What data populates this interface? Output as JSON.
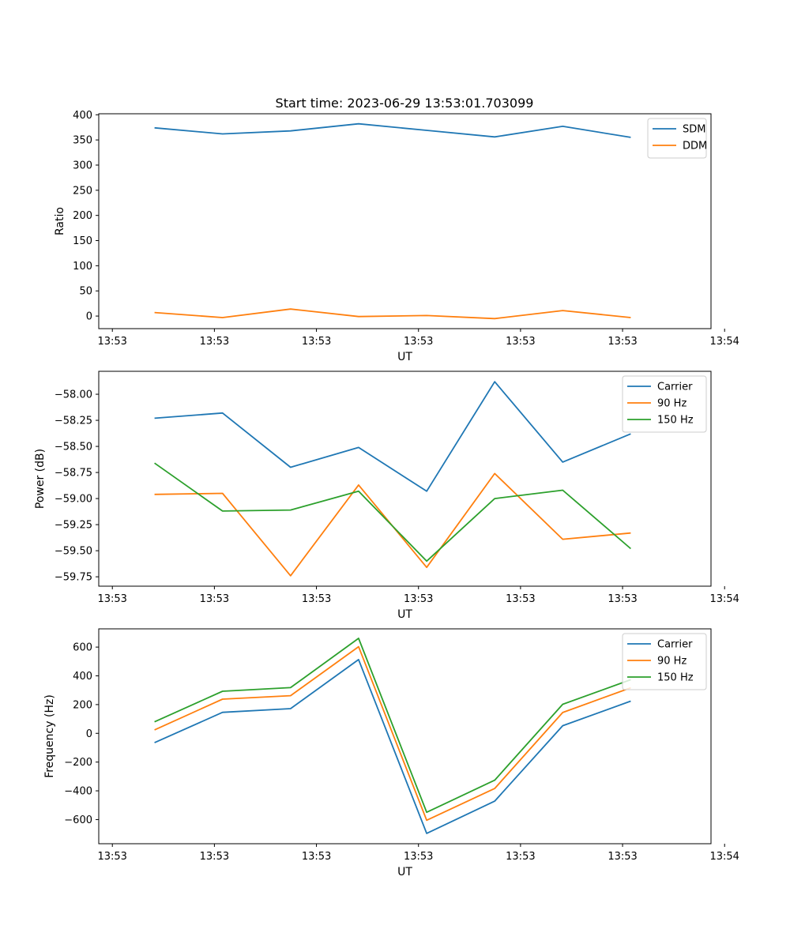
{
  "figure": {
    "title": "Start time: 2023-06-29 13:53:01.703099"
  },
  "chart_data": [
    {
      "type": "line",
      "title": "Start time: 2023-06-29 13:53:01.703099",
      "xlabel": "UT",
      "ylabel": "Ratio",
      "x": [
        1,
        2,
        3,
        4,
        5,
        6,
        7,
        8
      ],
      "xlim": [
        0.18,
        9.18
      ],
      "x_ticks": [
        0.38,
        1.88,
        3.38,
        4.88,
        6.38,
        7.88,
        9.38
      ],
      "x_tick_labels": [
        "13:53",
        "13:53",
        "13:53",
        "13:53",
        "13:53",
        "13:53",
        "13:54"
      ],
      "ylim": [
        -25,
        402
      ],
      "y_ticks": [
        0,
        50,
        100,
        150,
        200,
        250,
        300,
        350,
        400
      ],
      "y_tick_labels": [
        "0",
        "50",
        "100",
        "150",
        "200",
        "250",
        "300",
        "350",
        "400"
      ],
      "legend_position": "top-right",
      "grid": false,
      "series": [
        {
          "name": "SDM",
          "color": "#1f77b4",
          "values": [
            374,
            362,
            368,
            382,
            369,
            356,
            377,
            355
          ]
        },
        {
          "name": "DDM",
          "color": "#ff7f0e",
          "values": [
            7,
            -3,
            14,
            -1,
            1,
            -5,
            11,
            -3
          ]
        }
      ]
    },
    {
      "type": "line",
      "title": "",
      "xlabel": "UT",
      "ylabel": "Power (dB)",
      "x": [
        1,
        2,
        3,
        4,
        5,
        6,
        7,
        8
      ],
      "xlim": [
        0.18,
        9.18
      ],
      "x_ticks": [
        0.38,
        1.88,
        3.38,
        4.88,
        6.38,
        7.88,
        9.38
      ],
      "x_tick_labels": [
        "13:53",
        "13:53",
        "13:53",
        "13:53",
        "13:53",
        "13:53",
        "13:54"
      ],
      "ylim": [
        -59.84,
        -57.78
      ],
      "y_ticks": [
        -59.75,
        -59.5,
        -59.25,
        -59.0,
        -58.75,
        -58.5,
        -58.25,
        -58.0
      ],
      "y_tick_labels": [
        "−59.75",
        "−59.50",
        "−59.25",
        "−59.00",
        "−58.75",
        "−58.50",
        "−58.25",
        "−58.00"
      ],
      "legend_position": "top-right",
      "grid": false,
      "series": [
        {
          "name": "Carrier",
          "color": "#1f77b4",
          "values": [
            -58.23,
            -58.18,
            -58.7,
            -58.51,
            -58.93,
            -57.88,
            -58.65,
            -58.38
          ]
        },
        {
          "name": "90 Hz",
          "color": "#ff7f0e",
          "values": [
            -58.96,
            -58.95,
            -59.74,
            -58.87,
            -59.66,
            -58.76,
            -59.39,
            -59.33
          ]
        },
        {
          "name": "150 Hz",
          "color": "#2ca02c",
          "values": [
            -58.66,
            -59.12,
            -59.11,
            -58.93,
            -59.6,
            -59.0,
            -58.92,
            -59.48
          ]
        }
      ]
    },
    {
      "type": "line",
      "title": "",
      "xlabel": "UT",
      "ylabel": "Frequency (Hz)",
      "x": [
        1,
        2,
        3,
        4,
        5,
        6,
        7,
        8
      ],
      "xlim": [
        0.18,
        9.18
      ],
      "x_ticks": [
        0.38,
        1.88,
        3.38,
        4.88,
        6.38,
        7.88,
        9.38
      ],
      "x_tick_labels": [
        "13:53",
        "13:53",
        "13:53",
        "13:53",
        "13:53",
        "13:53",
        "13:54"
      ],
      "ylim": [
        -768,
        727
      ],
      "y_ticks": [
        -600,
        -400,
        -200,
        0,
        200,
        400,
        600
      ],
      "y_tick_labels": [
        "−600",
        "−400",
        "−200",
        "0",
        "200",
        "400",
        "600"
      ],
      "legend_position": "top-right",
      "grid": false,
      "series": [
        {
          "name": "Carrier",
          "color": "#1f77b4",
          "values": [
            -65,
            146,
            172,
            513,
            -696,
            -472,
            53,
            224
          ]
        },
        {
          "name": "90 Hz",
          "color": "#ff7f0e",
          "values": [
            24,
            238,
            262,
            603,
            -605,
            -384,
            145,
            317
          ]
        },
        {
          "name": "150 Hz",
          "color": "#2ca02c",
          "values": [
            80,
            293,
            318,
            661,
            -549,
            -326,
            202,
            373
          ]
        }
      ]
    }
  ]
}
